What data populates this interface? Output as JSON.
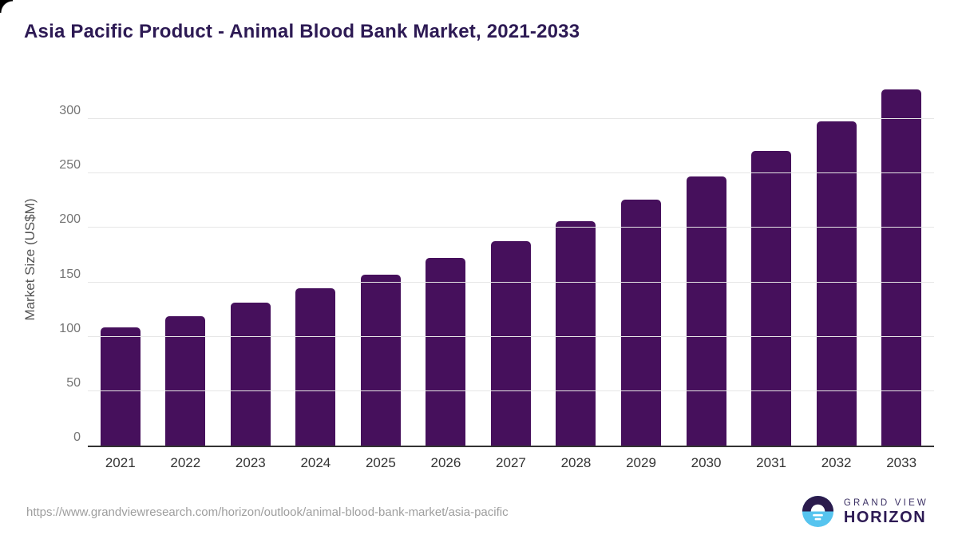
{
  "chart_data": {
    "type": "bar",
    "title": "Asia Pacific Product - Animal Blood Bank Market, 2021-2033",
    "xlabel": "",
    "ylabel": "Market Size (US$M)",
    "categories": [
      "2021",
      "2022",
      "2023",
      "2024",
      "2025",
      "2026",
      "2027",
      "2028",
      "2029",
      "2030",
      "2031",
      "2032",
      "2033"
    ],
    "values": [
      108.6,
      119.0,
      131.3,
      144.2,
      156.8,
      172.1,
      187.5,
      206.0,
      226.3,
      247.5,
      270.8,
      297.8,
      327.0
    ],
    "yticks": [
      0,
      50,
      100,
      150,
      200,
      250,
      300
    ],
    "ylim": [
      0,
      336
    ],
    "grid": true,
    "legend": "none",
    "bar_color": "#46105c"
  },
  "footer": {
    "source_url": "https://www.grandviewresearch.com/horizon/outlook/animal-blood-bank-market/asia-pacific",
    "logo": {
      "line1": "GRAND VIEW",
      "line2": "HORIZON",
      "circle_dark_color": "#2b1b4d",
      "circle_blue_color": "#56c4ef"
    }
  },
  "colors": {
    "title": "#2d1a54",
    "bar": "#46105c",
    "gridline": "#e6e6e6",
    "axis_line": "#333333",
    "tick_text": "#757575",
    "x_label_text": "#333333",
    "y_axis_label_text": "#555555",
    "url_text": "#9e9e9e"
  }
}
